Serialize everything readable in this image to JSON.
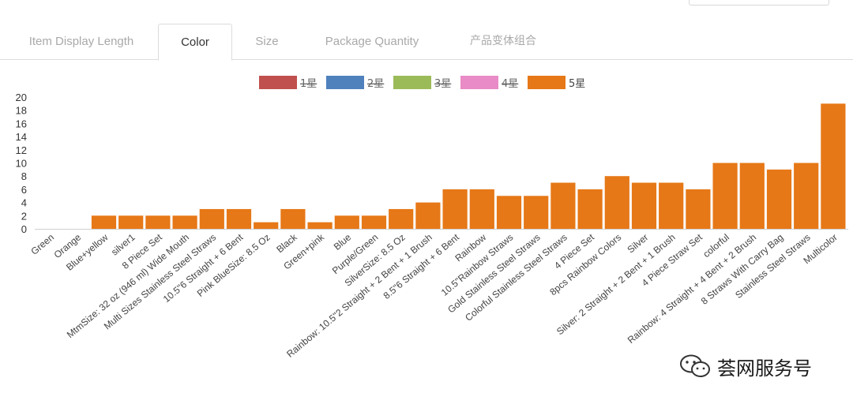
{
  "tabs": [
    {
      "label": "Item Display Length"
    },
    {
      "label": "Color"
    },
    {
      "label": "Size"
    },
    {
      "label": "Package Quantity"
    },
    {
      "label": "产品变体组合"
    }
  ],
  "active_tab": "Color",
  "watermark": "荟网服务号",
  "colors": {
    "s1": "#c0504d",
    "s2": "#4f81bd",
    "s3": "#9bbb59",
    "s4": "#e88bc6",
    "s5": "#e67817"
  },
  "chart_data": {
    "type": "bar",
    "title": "",
    "xlabel": "",
    "ylabel": "",
    "ylim": [
      0,
      20
    ],
    "yticks": [
      0,
      2,
      4,
      6,
      8,
      10,
      12,
      14,
      16,
      18,
      20
    ],
    "legend": [
      {
        "name": "1星",
        "color": "#c0504d",
        "hidden": true
      },
      {
        "name": "2星",
        "color": "#4f81bd",
        "hidden": true
      },
      {
        "name": "3星",
        "color": "#9bbb59",
        "hidden": true
      },
      {
        "name": "4星",
        "color": "#e88bc6",
        "hidden": true
      },
      {
        "name": "5星",
        "color": "#e67817",
        "hidden": false
      }
    ],
    "categories": [
      "Green",
      "Orange",
      "Blue+yellow",
      "silver1",
      "8 Piece Set",
      "MtmSize: 32 oz (946 ml) Wide Mouth",
      "Multi Sizes Stainless Steel Straws",
      "10.5\"6 Straight + 6 Bent",
      "Pink BlueSize: 8.5 Oz",
      "Black",
      "Green+pink",
      "Blue",
      "Purple/Green",
      "SilverSize: 8.5 Oz",
      "Rainbow: 10.5\"2 Straight + 2 Bent + 1 Brush",
      "8.5\"6 Straight + 6 Bent",
      "Rainbow",
      "10.5\"Rainbow Straws",
      "Gold Stainless Steel Straws",
      "Colorful Stainless Steel Straws",
      "4 Piece Set",
      "8pcs Rainbow Colors",
      "Silver",
      "Silver: 2 Straight + 2 Bent + 1 Brush",
      "4 Piece Straw Set",
      "colorful",
      "Rainbow: 4 Straight + 4 Bent + 2 Brush",
      "8 Straws With Carry Bag",
      "Stainless Steel Straws",
      "Multicolor"
    ],
    "series": [
      {
        "name": "5星",
        "values": [
          0,
          0,
          2,
          2,
          2,
          2,
          3,
          3,
          1,
          3,
          1,
          2,
          2,
          3,
          4,
          6,
          6,
          5,
          5,
          7,
          6,
          8,
          7,
          7,
          6,
          10,
          10,
          9,
          10,
          19
        ]
      }
    ]
  }
}
